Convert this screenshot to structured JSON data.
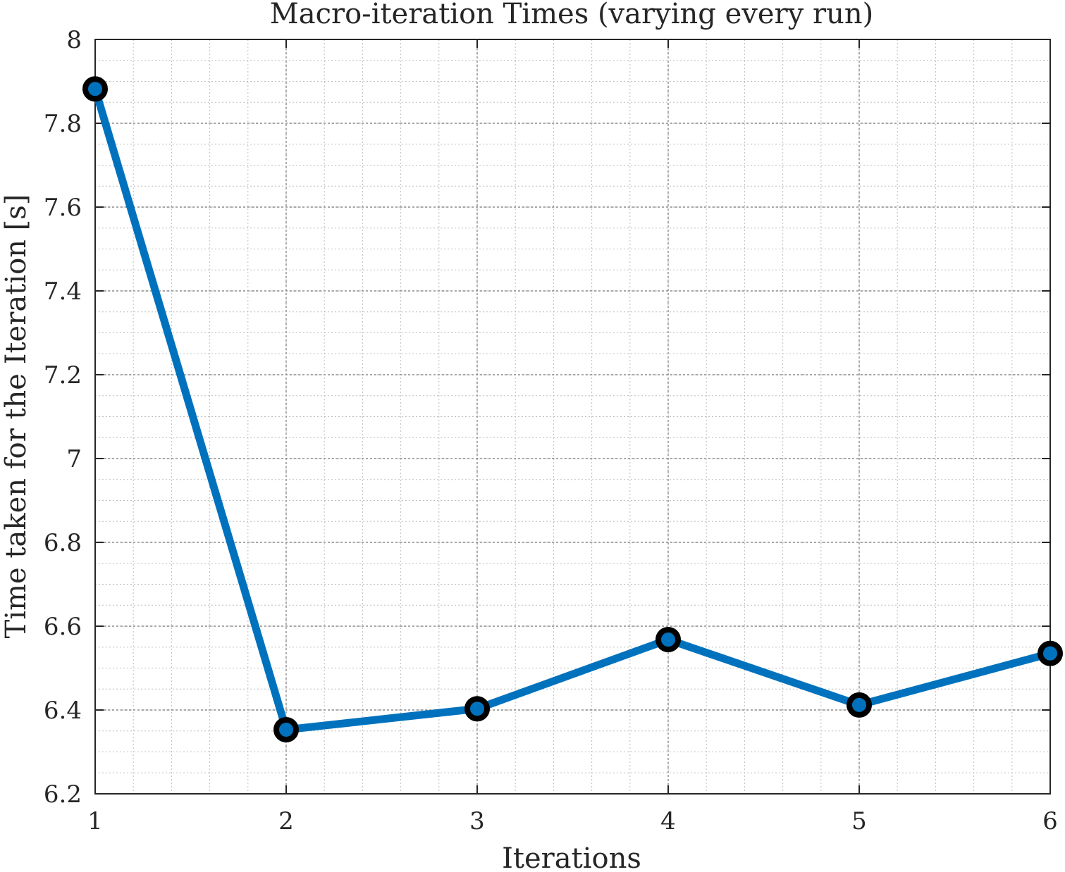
{
  "chart_data": {
    "type": "line",
    "title": "Macro-iteration Times (varying every run)",
    "xlabel": "Iterations",
    "ylabel": "Time taken for the Iteration [s]",
    "x": [
      1,
      2,
      3,
      4,
      5,
      6
    ],
    "series": [
      {
        "values": [
          7.882,
          6.353,
          6.403,
          6.568,
          6.412,
          6.535
        ]
      }
    ],
    "xlim": [
      1,
      6
    ],
    "ylim": [
      6.2,
      8
    ],
    "xticks": [
      "1",
      "2",
      "3",
      "4",
      "5",
      "6"
    ],
    "yticks": [
      "6.2",
      "6.4",
      "6.6",
      "6.8",
      "7",
      "7.2",
      "7.4",
      "7.6",
      "7.8",
      "8"
    ],
    "grid": true,
    "minor_grid": true,
    "colors": {
      "line": "#0072bd",
      "marker_edge": "#000000",
      "marker_face": "#0072bd"
    }
  }
}
